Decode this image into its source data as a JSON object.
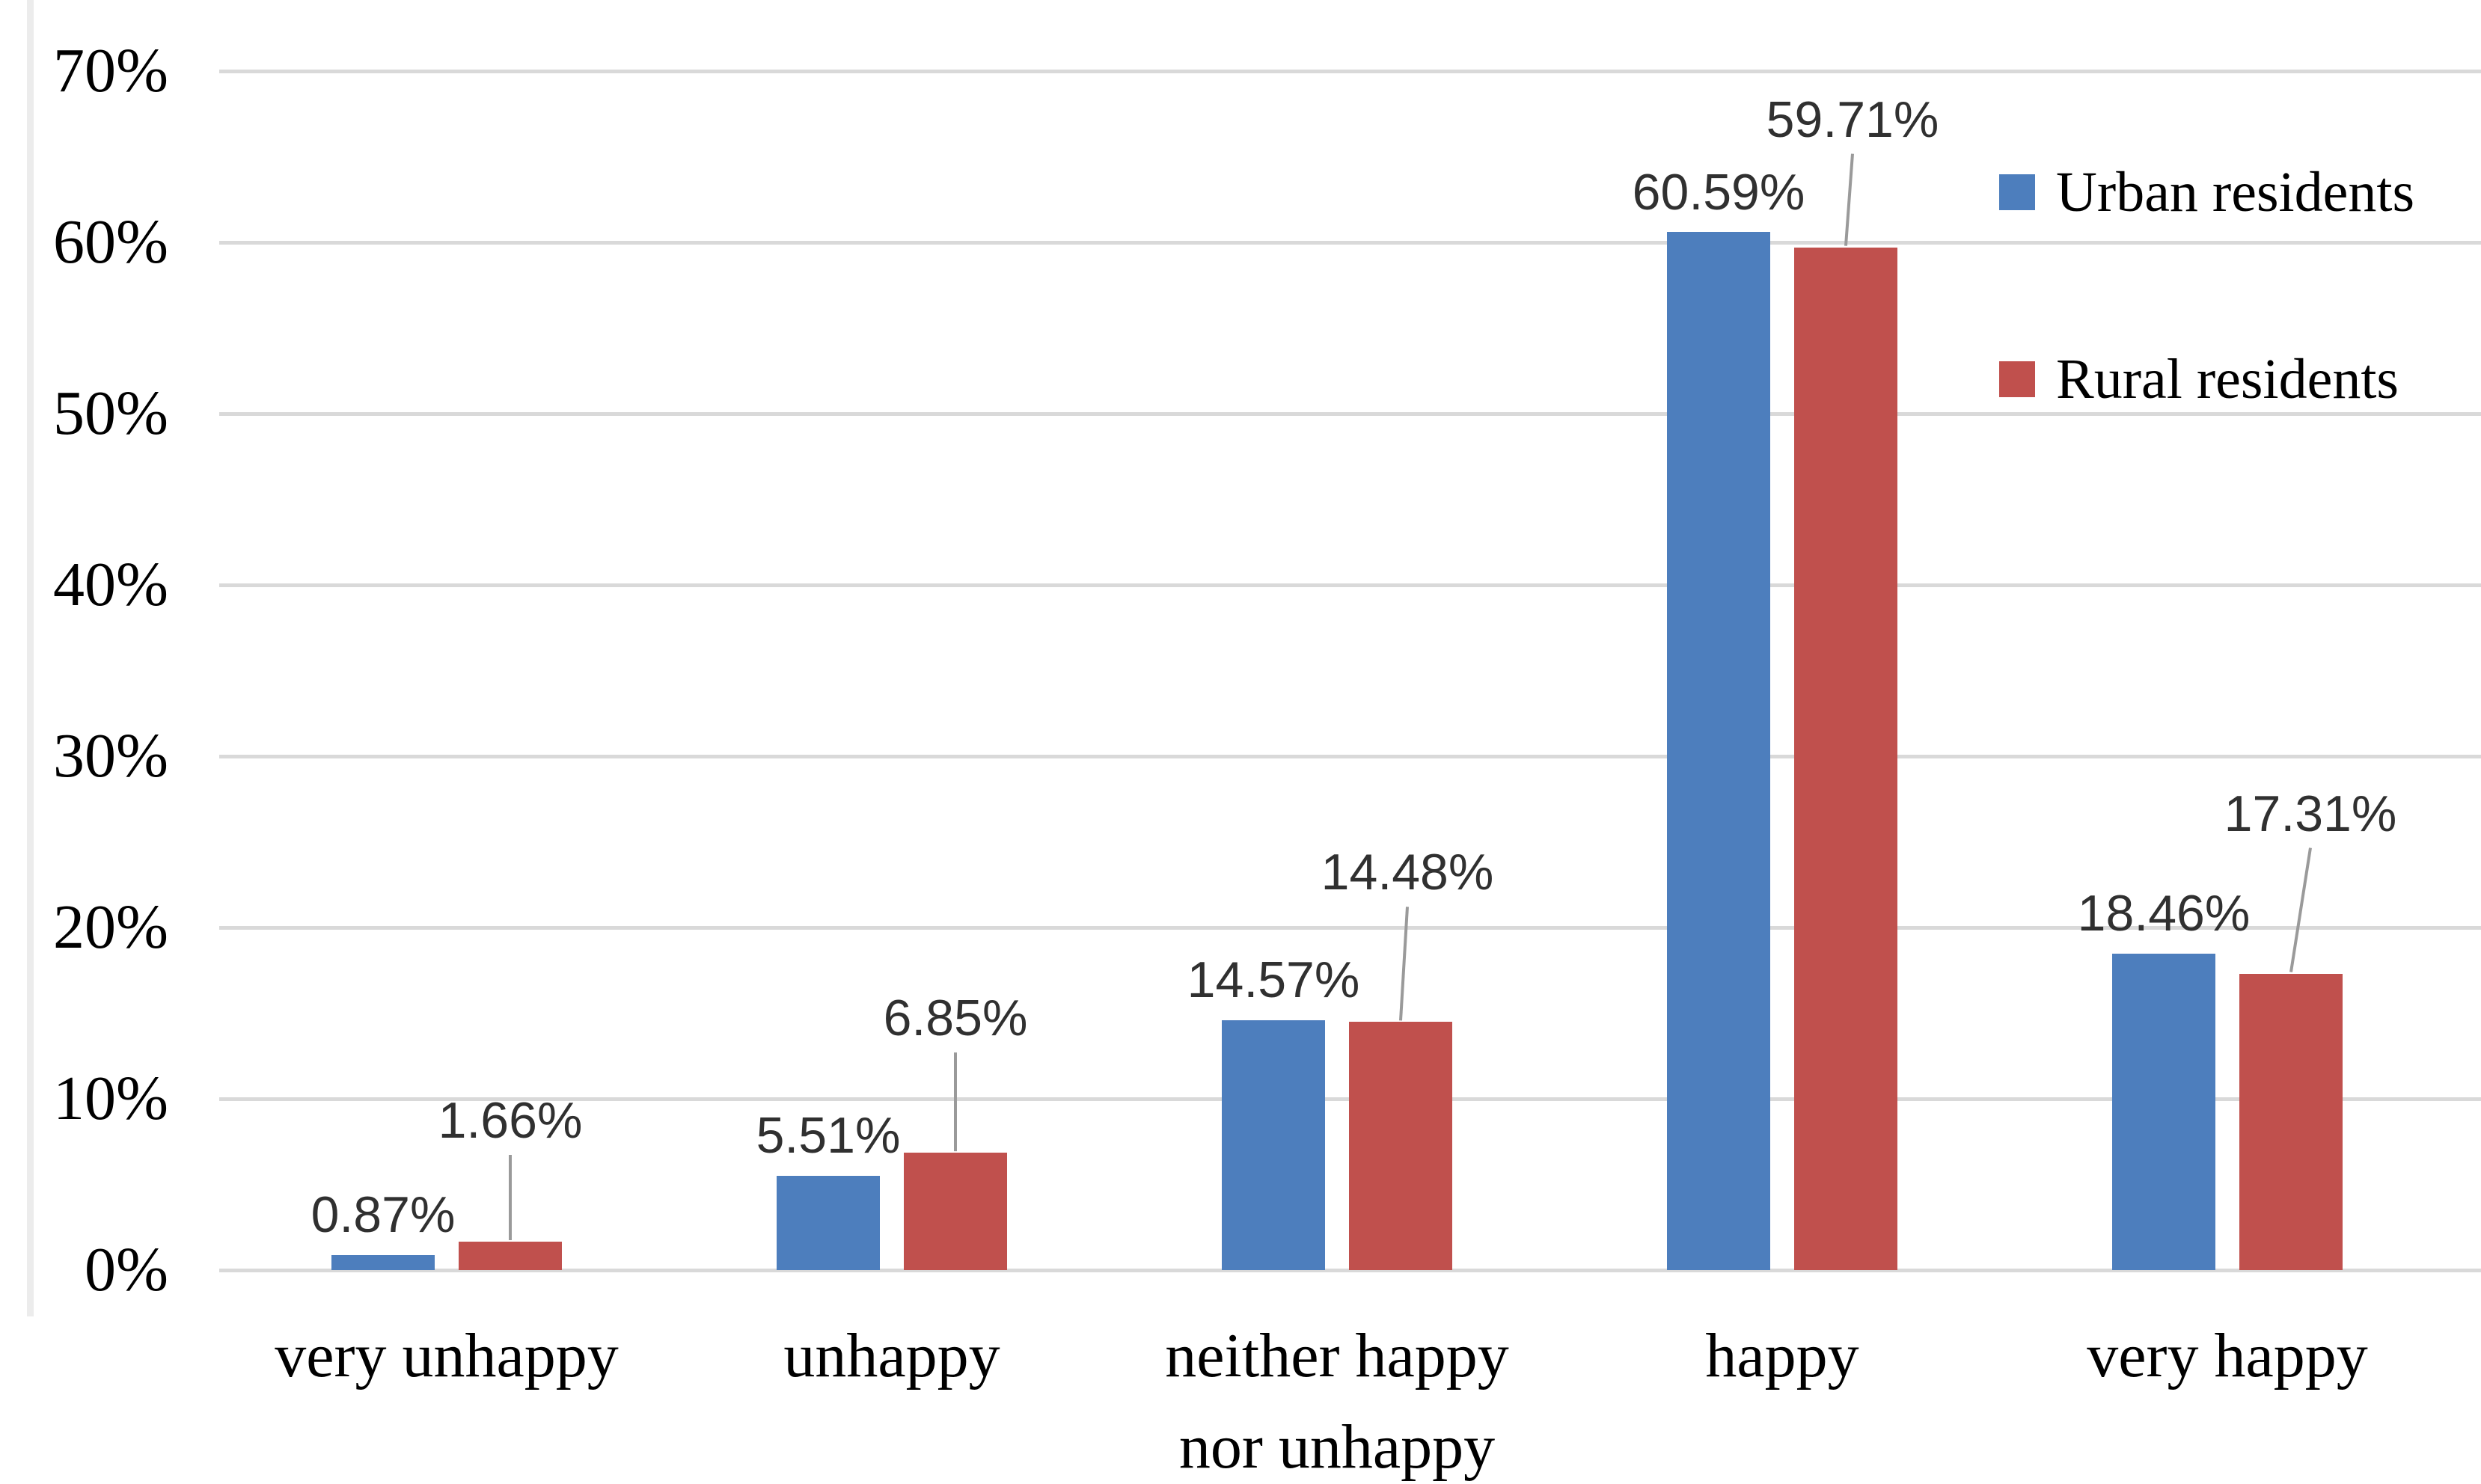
{
  "chart_data": {
    "type": "bar",
    "title": "",
    "xlabel": "",
    "ylabel": "",
    "categories": [
      [
        "very unhappy"
      ],
      [
        "unhappy"
      ],
      [
        "neither happy",
        "nor unhappy"
      ],
      [
        "happy"
      ],
      [
        "very happy"
      ]
    ],
    "series": [
      {
        "name": "Urban residents",
        "color": "#4D7EBD",
        "values": [
          0.87,
          5.51,
          14.57,
          60.59,
          18.46
        ],
        "data_labels": [
          "0.87%",
          "5.51%",
          "14.57%",
          "60.59%",
          "18.46%"
        ]
      },
      {
        "name": "Rural residents",
        "color": "#C0504D",
        "values": [
          1.66,
          6.85,
          14.48,
          59.71,
          17.31
        ],
        "data_labels": [
          "1.66%",
          "6.85%",
          "14.48%",
          "59.71%",
          "17.31%"
        ]
      }
    ],
    "y_axis": {
      "min": 0,
      "max": 70,
      "tick_step": 10,
      "tick_labels": [
        "0%",
        "10%",
        "20%",
        "30%",
        "40%",
        "50%",
        "60%",
        "70%"
      ]
    },
    "grid": true,
    "legend_position": "top-right",
    "colors": {
      "gridline": "#D9D9D9",
      "leader_line": "#9A9A9A",
      "data_label_text": "#303030",
      "axis_text": "#000000"
    }
  }
}
